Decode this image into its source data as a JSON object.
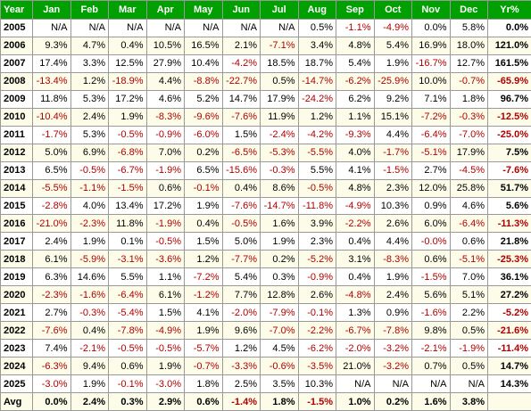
{
  "table": {
    "header": [
      "Year",
      "Jan",
      "Feb",
      "Mar",
      "Apr",
      "May",
      "Jun",
      "Jul",
      "Aug",
      "Sep",
      "Oct",
      "Nov",
      "Dec",
      "Yr%"
    ],
    "rows": [
      [
        "2005",
        "N/A",
        "N/A",
        "N/A",
        "N/A",
        "N/A",
        "N/A",
        "N/A",
        "0.5%",
        "-1.1%",
        "-4.9%",
        "0.0%",
        "5.8%",
        "0.0%"
      ],
      [
        "2006",
        "9.3%",
        "4.7%",
        "0.4%",
        "10.5%",
        "16.5%",
        "2.1%",
        "-7.1%",
        "3.4%",
        "4.8%",
        "5.4%",
        "16.9%",
        "18.0%",
        "121.0%"
      ],
      [
        "2007",
        "17.4%",
        "3.3%",
        "12.5%",
        "27.9%",
        "10.4%",
        "-4.2%",
        "18.5%",
        "18.7%",
        "5.4%",
        "1.9%",
        "-16.7%",
        "12.7%",
        "161.5%"
      ],
      [
        "2008",
        "-13.4%",
        "1.2%",
        "-18.9%",
        "4.4%",
        "-8.8%",
        "-22.7%",
        "0.5%",
        "-14.7%",
        "-6.2%",
        "-25.9%",
        "10.0%",
        "-0.7%",
        "-65.9%"
      ],
      [
        "2009",
        "11.8%",
        "5.3%",
        "17.2%",
        "4.6%",
        "5.2%",
        "14.7%",
        "17.9%",
        "-24.2%",
        "6.2%",
        "9.2%",
        "7.1%",
        "1.8%",
        "96.7%"
      ],
      [
        "2010",
        "-10.4%",
        "2.4%",
        "1.9%",
        "-8.3%",
        "-9.6%",
        "-7.6%",
        "11.9%",
        "1.2%",
        "1.1%",
        "15.1%",
        "-7.2%",
        "-0.3%",
        "-12.5%"
      ],
      [
        "2011",
        "-1.7%",
        "5.3%",
        "-0.5%",
        "-0.9%",
        "-6.0%",
        "1.5%",
        "-2.4%",
        "-4.2%",
        "-9.3%",
        "4.4%",
        "-6.4%",
        "-7.0%",
        "-25.0%"
      ],
      [
        "2012",
        "5.0%",
        "6.9%",
        "-6.8%",
        "7.0%",
        "0.2%",
        "-6.5%",
        "-5.3%",
        "-5.5%",
        "4.0%",
        "-1.7%",
        "-5.1%",
        "17.9%",
        "7.5%"
      ],
      [
        "2013",
        "6.5%",
        "-0.5%",
        "-6.7%",
        "-1.9%",
        "6.5%",
        "-15.6%",
        "-0.3%",
        "5.5%",
        "4.1%",
        "-1.5%",
        "2.7%",
        "-4.5%",
        "-7.6%"
      ],
      [
        "2014",
        "-5.5%",
        "-1.1%",
        "-1.5%",
        "0.6%",
        "-0.1%",
        "0.4%",
        "8.6%",
        "-0.5%",
        "4.8%",
        "2.3%",
        "12.0%",
        "25.8%",
        "51.7%"
      ],
      [
        "2015",
        "-2.8%",
        "4.0%",
        "13.4%",
        "17.2%",
        "1.9%",
        "-7.6%",
        "-14.7%",
        "-11.8%",
        "-4.9%",
        "10.3%",
        "0.9%",
        "4.6%",
        "5.6%"
      ],
      [
        "2016",
        "-21.0%",
        "-2.3%",
        "11.8%",
        "-1.9%",
        "0.4%",
        "-0.5%",
        "1.6%",
        "3.9%",
        "-2.2%",
        "2.6%",
        "6.0%",
        "-6.4%",
        "-11.3%"
      ],
      [
        "2017",
        "2.4%",
        "1.9%",
        "0.1%",
        "-0.5%",
        "1.5%",
        "5.0%",
        "1.9%",
        "2.3%",
        "0.4%",
        "4.4%",
        "-0.0%",
        "0.6%",
        "21.8%"
      ],
      [
        "2018",
        "6.1%",
        "-5.9%",
        "-3.1%",
        "-3.6%",
        "1.2%",
        "-7.7%",
        "0.2%",
        "-5.2%",
        "3.1%",
        "-8.3%",
        "0.6%",
        "-5.1%",
        "-25.3%"
      ],
      [
        "2019",
        "6.3%",
        "14.6%",
        "5.5%",
        "1.1%",
        "-7.2%",
        "5.4%",
        "0.3%",
        "-0.9%",
        "0.4%",
        "1.9%",
        "-1.5%",
        "7.0%",
        "36.1%"
      ],
      [
        "2020",
        "-2.3%",
        "-1.6%",
        "-6.4%",
        "6.1%",
        "-1.2%",
        "7.7%",
        "12.8%",
        "2.6%",
        "-4.8%",
        "2.4%",
        "5.6%",
        "5.1%",
        "27.2%"
      ],
      [
        "2021",
        "2.7%",
        "-0.3%",
        "-5.4%",
        "1.5%",
        "4.1%",
        "-2.0%",
        "-7.9%",
        "-0.1%",
        "1.3%",
        "0.9%",
        "-1.6%",
        "2.2%",
        "-5.2%"
      ],
      [
        "2022",
        "-7.6%",
        "0.4%",
        "-7.8%",
        "-4.9%",
        "1.9%",
        "9.6%",
        "-7.0%",
        "-2.2%",
        "-6.7%",
        "-7.8%",
        "9.8%",
        "0.5%",
        "-21.6%"
      ],
      [
        "2023",
        "7.4%",
        "-2.1%",
        "-0.5%",
        "-0.5%",
        "-5.7%",
        "1.2%",
        "4.5%",
        "-6.2%",
        "-2.0%",
        "-3.2%",
        "-2.1%",
        "-1.9%",
        "-11.4%"
      ],
      [
        "2024",
        "-6.3%",
        "9.4%",
        "0.6%",
        "1.9%",
        "-0.7%",
        "-3.3%",
        "-0.6%",
        "-3.5%",
        "21.0%",
        "-3.2%",
        "0.7%",
        "0.5%",
        "14.7%"
      ],
      [
        "2025",
        "-3.0%",
        "1.9%",
        "-0.1%",
        "-3.0%",
        "1.8%",
        "2.5%",
        "3.5%",
        "10.3%",
        "N/A",
        "N/A",
        "N/A",
        "N/A",
        "14.3%"
      ]
    ],
    "average": [
      "Avg",
      "0.0%",
      "2.4%",
      "0.3%",
      "2.9%",
      "0.6%",
      "-1.4%",
      "1.8%",
      "-1.5%",
      "1.0%",
      "0.2%",
      "1.6%",
      "3.8%"
    ]
  }
}
